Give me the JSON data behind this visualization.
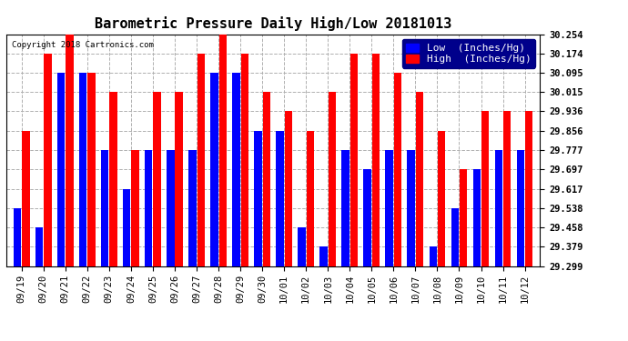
{
  "title": "Barometric Pressure Daily High/Low 20181013",
  "copyright": "Copyright 2018 Cartronics.com",
  "legend_low": "Low  (Inches/Hg)",
  "legend_high": "High  (Inches/Hg)",
  "dates": [
    "09/19",
    "09/20",
    "09/21",
    "09/22",
    "09/23",
    "09/24",
    "09/25",
    "09/26",
    "09/27",
    "09/28",
    "09/29",
    "09/30",
    "10/01",
    "10/02",
    "10/03",
    "10/04",
    "10/05",
    "10/06",
    "10/07",
    "10/08",
    "10/09",
    "10/10",
    "10/11",
    "10/12"
  ],
  "high_values": [
    29.856,
    30.174,
    30.254,
    30.095,
    30.015,
    29.777,
    30.015,
    30.015,
    30.174,
    30.254,
    30.174,
    30.015,
    29.936,
    29.856,
    30.015,
    30.174,
    30.174,
    30.095,
    30.015,
    29.856,
    29.697,
    29.936,
    29.936,
    29.936
  ],
  "low_values": [
    29.538,
    29.458,
    30.095,
    30.095,
    29.777,
    29.617,
    29.777,
    29.777,
    29.777,
    30.095,
    30.095,
    29.856,
    29.856,
    29.458,
    29.379,
    29.777,
    29.697,
    29.777,
    29.777,
    29.379,
    29.538,
    29.697,
    29.777,
    29.777
  ],
  "yticks": [
    29.299,
    29.379,
    29.458,
    29.538,
    29.617,
    29.697,
    29.777,
    29.856,
    29.936,
    30.015,
    30.095,
    30.174,
    30.254
  ],
  "ymin": 29.299,
  "ymax": 30.254,
  "bar_color_low": "#0000ff",
  "bar_color_high": "#ff0000",
  "bg_color": "#ffffff",
  "grid_color": "#b0b0b0",
  "title_fontsize": 11,
  "tick_fontsize": 7.5,
  "legend_fontsize": 8,
  "bar_width": 0.35,
  "bar_gap": 0.04
}
